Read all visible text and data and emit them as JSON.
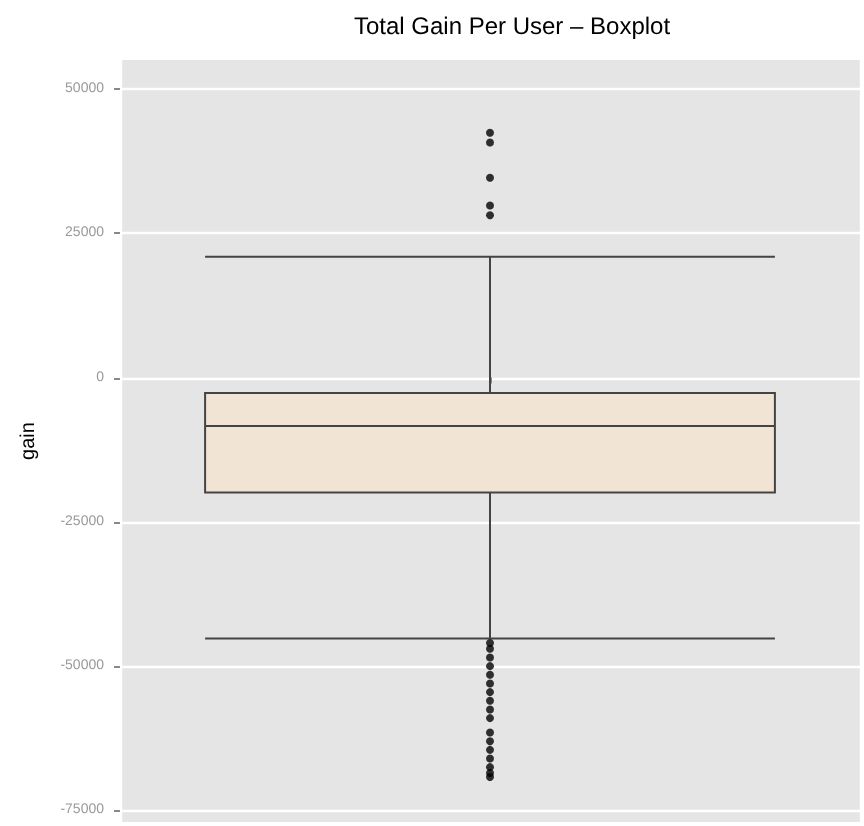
{
  "chart_data": {
    "type": "box",
    "title": "Total Gain Per User – Boxplot",
    "ylabel": "gain",
    "categories": [
      null
    ],
    "boxes": [
      {
        "low": -45200,
        "q1": -19900,
        "median": -8400,
        "q3": -2700,
        "high": 20900,
        "outliers": [
          42400,
          40700,
          34600,
          29800,
          28100,
          -46000,
          -47000,
          -48500,
          -50000,
          -51500,
          -53000,
          -54500,
          -56000,
          -57500,
          -59000,
          -61500,
          -63000,
          -64500,
          -66000,
          -67500,
          -68500,
          -69200
        ]
      }
    ],
    "color": "#f2e4d5",
    "ylim": [
      -77000,
      55000
    ],
    "yticks": [
      -75000,
      -50000,
      -25000,
      0,
      25000,
      50000
    ],
    "grid": true,
    "tick_labels": "y"
  }
}
